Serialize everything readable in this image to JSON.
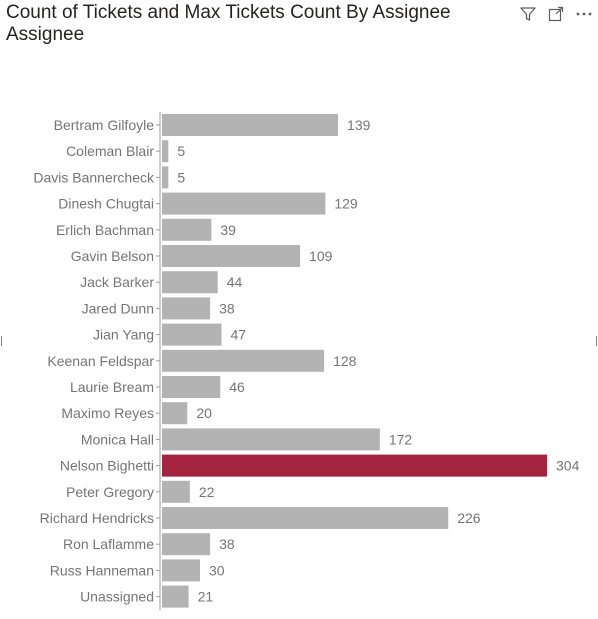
{
  "visual": {
    "title_line1": "Count of Tickets and Max Tickets Count By Assignee",
    "title_line2": "Assignee"
  },
  "header_icons": [
    "filter-icon",
    "focus-mode-icon",
    "more-options-icon"
  ],
  "colors": {
    "bar_default": "#b3b3b3",
    "bar_highlight": "#a4233f",
    "label": "#757575",
    "axis": "#9e9e9e"
  },
  "chart_data": {
    "type": "bar",
    "orientation": "horizontal",
    "title": "Count of Tickets and Max Tickets Count By Assignee",
    "xlabel": "",
    "ylabel": "Assignee",
    "grid": false,
    "legend": "none",
    "xlim": [
      0,
      304
    ],
    "categories": [
      "Bertram Gilfoyle",
      "Coleman Blair",
      "Davis Bannercheck",
      "Dinesh Chugtai",
      "Erlich Bachman",
      "Gavin Belson",
      "Jack Barker",
      "Jared Dunn",
      "Jian Yang",
      "Keenan Feldspar",
      "Laurie Bream",
      "Maximo Reyes",
      "Monica Hall",
      "Nelson Bighetti",
      "Peter Gregory",
      "Richard Hendricks",
      "Ron Laflamme",
      "Russ Hanneman",
      "Unassigned"
    ],
    "values": [
      139,
      5,
      5,
      129,
      39,
      109,
      44,
      38,
      47,
      128,
      46,
      20,
      172,
      304,
      22,
      226,
      38,
      30,
      21
    ],
    "highlighted_category": "Nelson Bighetti"
  }
}
